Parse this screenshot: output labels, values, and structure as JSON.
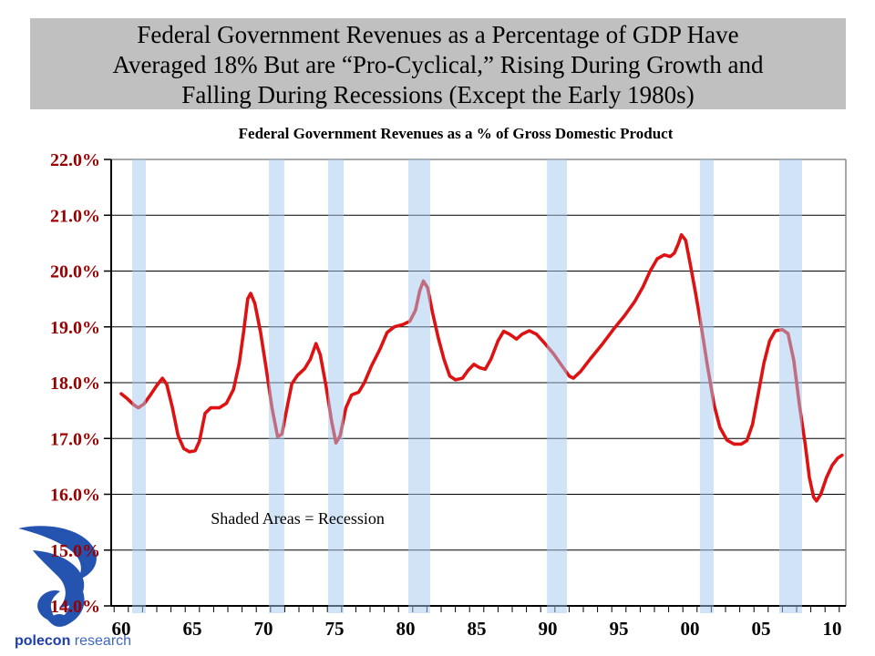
{
  "slide": {
    "title_lines": [
      "Federal Government Revenues as a Percentage of GDP Have",
      "Averaged 18% But are “Pro-Cyclical,” Rising During Growth and",
      "Falling During Recessions (Except the Early 1980s)"
    ]
  },
  "logo": {
    "name_bold": "polecon",
    "name_regular": "research"
  },
  "colors": {
    "title_box_bg": "#C0C0C0",
    "line": "#DE1212",
    "band": "#A4C8EE",
    "band_opacity": 0.5,
    "y_label": "#990000",
    "x_label": "#000000",
    "grid": "#000000",
    "axis": "#000000",
    "border_gray": "#8C8C8C",
    "logo_blue": "#2453B0"
  },
  "chart_data": {
    "type": "line",
    "title": "Federal Government Revenues as a % of Gross Domestic Product",
    "annotation": {
      "text": "Shaded Areas = Recession",
      "year": 1966.3,
      "pct": 15.55
    },
    "y_axis": {
      "min": 14,
      "max": 22,
      "ticks": [
        {
          "label": "22.0%",
          "value": 22
        },
        {
          "label": "21.0%",
          "value": 21
        },
        {
          "label": "20.0%",
          "value": 20
        },
        {
          "label": "19.0%",
          "value": 19
        },
        {
          "label": "18.0%",
          "value": 18
        },
        {
          "label": "17.0%",
          "value": 17
        },
        {
          "label": "16.0%",
          "value": 16
        },
        {
          "label": "15.0%",
          "value": 15
        },
        {
          "label": "14.0%",
          "value": 14
        }
      ]
    },
    "x_axis": {
      "range_years": [
        1959.3,
        2011.0
      ],
      "minor_tick_start_year": 1959.5,
      "minor_tick_step": 1,
      "ticks": [
        {
          "label": "60",
          "year": 1960
        },
        {
          "label": "65",
          "year": 1965
        },
        {
          "label": "70",
          "year": 1970
        },
        {
          "label": "75",
          "year": 1975
        },
        {
          "label": "80",
          "year": 1980
        },
        {
          "label": "85",
          "year": 1985
        },
        {
          "label": "90",
          "year": 1990
        },
        {
          "label": "95",
          "year": 1995
        },
        {
          "label": "00",
          "year": 2000
        },
        {
          "label": "05",
          "year": 2005
        },
        {
          "label": "10",
          "year": 2010
        }
      ]
    },
    "recession_bands": {
      "spans_years": [
        [
          1960.77,
          1961.73
        ],
        [
          1970.38,
          1971.47
        ],
        [
          1974.55,
          1975.64
        ],
        [
          1980.19,
          1981.73
        ],
        [
          1989.94,
          1991.35
        ],
        [
          2000.7,
          2001.67
        ],
        [
          2006.28,
          2007.88
        ]
      ]
    },
    "series": [
      {
        "name": "Federal Government Revenues as a % of GDP",
        "points": [
          [
            1960.0,
            17.8
          ],
          [
            1960.4,
            17.72
          ],
          [
            1960.9,
            17.6
          ],
          [
            1961.2,
            17.55
          ],
          [
            1961.6,
            17.62
          ],
          [
            1962.0,
            17.76
          ],
          [
            1962.5,
            17.95
          ],
          [
            1962.9,
            18.08
          ],
          [
            1963.2,
            17.97
          ],
          [
            1963.6,
            17.55
          ],
          [
            1964.0,
            17.05
          ],
          [
            1964.4,
            16.82
          ],
          [
            1964.8,
            16.76
          ],
          [
            1965.2,
            16.78
          ],
          [
            1965.5,
            16.95
          ],
          [
            1965.9,
            17.45
          ],
          [
            1966.3,
            17.55
          ],
          [
            1966.9,
            17.55
          ],
          [
            1967.4,
            17.63
          ],
          [
            1967.9,
            17.88
          ],
          [
            1968.3,
            18.35
          ],
          [
            1968.6,
            18.9
          ],
          [
            1968.9,
            19.5
          ],
          [
            1969.1,
            19.6
          ],
          [
            1969.4,
            19.42
          ],
          [
            1969.8,
            18.9
          ],
          [
            1970.2,
            18.25
          ],
          [
            1970.6,
            17.55
          ],
          [
            1971.0,
            17.03
          ],
          [
            1971.3,
            17.08
          ],
          [
            1971.7,
            17.6
          ],
          [
            1972.0,
            17.98
          ],
          [
            1972.4,
            18.13
          ],
          [
            1972.9,
            18.25
          ],
          [
            1973.3,
            18.42
          ],
          [
            1973.7,
            18.7
          ],
          [
            1974.0,
            18.5
          ],
          [
            1974.4,
            17.95
          ],
          [
            1974.8,
            17.3
          ],
          [
            1975.1,
            16.92
          ],
          [
            1975.4,
            17.05
          ],
          [
            1975.8,
            17.55
          ],
          [
            1976.2,
            17.78
          ],
          [
            1976.7,
            17.83
          ],
          [
            1977.1,
            18.0
          ],
          [
            1977.6,
            18.3
          ],
          [
            1978.2,
            18.6
          ],
          [
            1978.7,
            18.9
          ],
          [
            1979.2,
            19.0
          ],
          [
            1979.8,
            19.04
          ],
          [
            1980.3,
            19.1
          ],
          [
            1980.7,
            19.3
          ],
          [
            1981.0,
            19.65
          ],
          [
            1981.25,
            19.82
          ],
          [
            1981.55,
            19.7
          ],
          [
            1981.9,
            19.25
          ],
          [
            1982.3,
            18.8
          ],
          [
            1982.7,
            18.42
          ],
          [
            1983.1,
            18.12
          ],
          [
            1983.5,
            18.05
          ],
          [
            1984.0,
            18.08
          ],
          [
            1984.4,
            18.22
          ],
          [
            1984.8,
            18.33
          ],
          [
            1985.2,
            18.27
          ],
          [
            1985.6,
            18.24
          ],
          [
            1986.0,
            18.42
          ],
          [
            1986.5,
            18.75
          ],
          [
            1986.9,
            18.92
          ],
          [
            1987.3,
            18.87
          ],
          [
            1987.8,
            18.78
          ],
          [
            1988.2,
            18.87
          ],
          [
            1988.7,
            18.93
          ],
          [
            1989.2,
            18.87
          ],
          [
            1989.8,
            18.7
          ],
          [
            1990.4,
            18.52
          ],
          [
            1991.0,
            18.3
          ],
          [
            1991.5,
            18.12
          ],
          [
            1991.8,
            18.08
          ],
          [
            1992.3,
            18.2
          ],
          [
            1993.0,
            18.43
          ],
          [
            1993.8,
            18.68
          ],
          [
            1994.6,
            18.95
          ],
          [
            1995.4,
            19.2
          ],
          [
            1996.1,
            19.45
          ],
          [
            1996.7,
            19.72
          ],
          [
            1997.2,
            20.0
          ],
          [
            1997.7,
            20.22
          ],
          [
            1998.2,
            20.29
          ],
          [
            1998.6,
            20.26
          ],
          [
            1998.9,
            20.32
          ],
          [
            1999.2,
            20.5
          ],
          [
            1999.4,
            20.65
          ],
          [
            1999.7,
            20.55
          ],
          [
            2000.0,
            20.15
          ],
          [
            2000.4,
            19.6
          ],
          [
            2000.8,
            19.0
          ],
          [
            2001.2,
            18.35
          ],
          [
            2001.7,
            17.6
          ],
          [
            2002.1,
            17.2
          ],
          [
            2002.6,
            16.97
          ],
          [
            2003.1,
            16.9
          ],
          [
            2003.6,
            16.9
          ],
          [
            2004.0,
            16.96
          ],
          [
            2004.4,
            17.25
          ],
          [
            2004.8,
            17.8
          ],
          [
            2005.2,
            18.35
          ],
          [
            2005.6,
            18.75
          ],
          [
            2006.0,
            18.93
          ],
          [
            2006.5,
            18.95
          ],
          [
            2006.9,
            18.88
          ],
          [
            2007.3,
            18.4
          ],
          [
            2007.7,
            17.6
          ],
          [
            2008.1,
            16.9
          ],
          [
            2008.4,
            16.3
          ],
          [
            2008.7,
            15.95
          ],
          [
            2008.9,
            15.88
          ],
          [
            2009.2,
            16.0
          ],
          [
            2009.6,
            16.3
          ],
          [
            2010.0,
            16.52
          ],
          [
            2010.4,
            16.65
          ],
          [
            2010.7,
            16.7
          ]
        ]
      }
    ]
  }
}
